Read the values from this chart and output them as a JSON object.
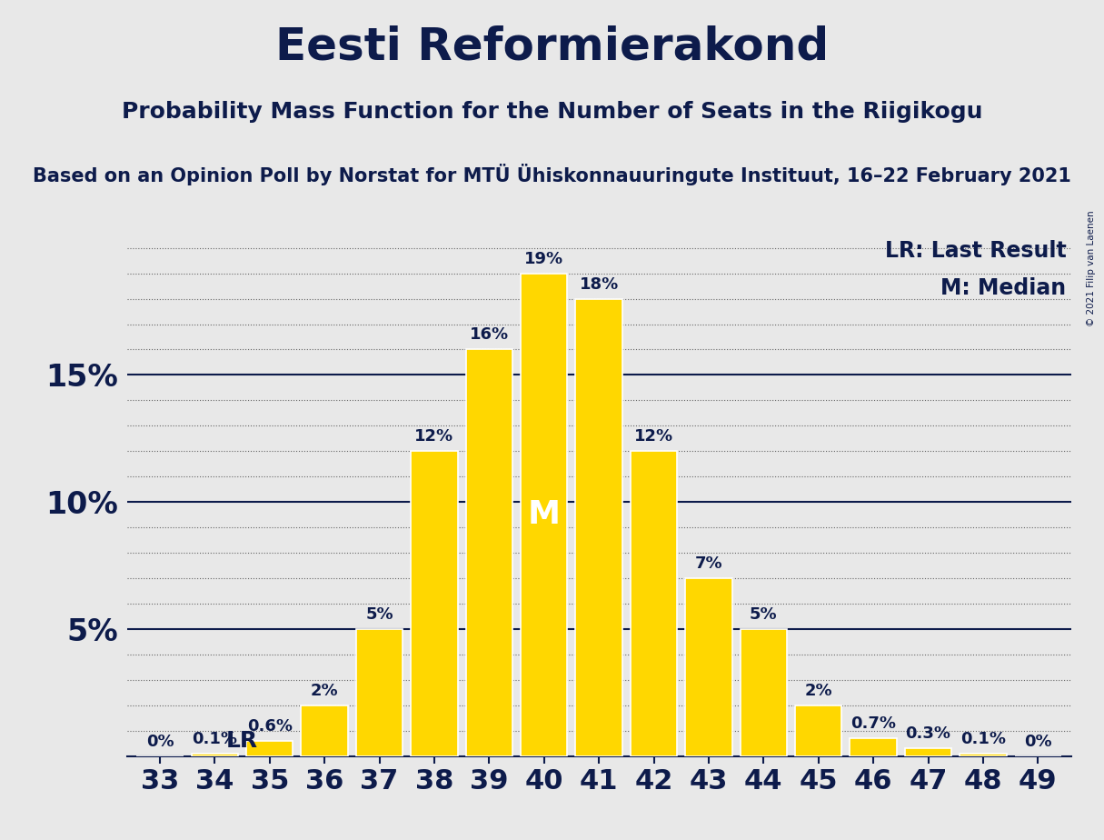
{
  "title": "Eesti Reformierakond",
  "subtitle": "Probability Mass Function for the Number of Seats in the Riigikogu",
  "source_line": "Based on an Opinion Poll by Norstat for MTÜ Ühiskonnauuringute Instituut, 16–22 February 2021",
  "copyright": "© 2021 Filip van Laenen",
  "seats": [
    33,
    34,
    35,
    36,
    37,
    38,
    39,
    40,
    41,
    42,
    43,
    44,
    45,
    46,
    47,
    48,
    49
  ],
  "probabilities": [
    0.0,
    0.1,
    0.6,
    2.0,
    5.0,
    12.0,
    16.0,
    19.0,
    18.0,
    12.0,
    7.0,
    5.0,
    2.0,
    0.7,
    0.3,
    0.1,
    0.0
  ],
  "labels": [
    "0%",
    "0.1%",
    "0.6%",
    "2%",
    "5%",
    "12%",
    "16%",
    "19%",
    "18%",
    "12%",
    "7%",
    "5%",
    "2%",
    "0.7%",
    "0.3%",
    "0.1%",
    "0%"
  ],
  "bar_color": "#FFD700",
  "bar_edge_color": "#FFFFFF",
  "median_seat": 40,
  "lr_seat": 35,
  "lr_label": "LR",
  "median_label": "M",
  "lr_legend": "LR: Last Result",
  "median_legend": "M: Median",
  "background_color": "#E8E8E8",
  "text_color": "#0D1B4B",
  "title_fontsize": 36,
  "subtitle_fontsize": 18,
  "source_fontsize": 15,
  "ylabel_fontsize": 24,
  "xlabel_fontsize": 22,
  "bar_label_fontsize": 13,
  "legend_fontsize": 17,
  "ylim_max": 20.5,
  "solid_grid_vals": [
    5,
    10,
    15
  ],
  "dotted_grid_vals": [
    1,
    2,
    3,
    4,
    6,
    7,
    8,
    9,
    11,
    12,
    13,
    14,
    16,
    17,
    18,
    19,
    20
  ],
  "ytick_vals": [
    5,
    10,
    15
  ],
  "ytick_labels": [
    "5%",
    "10%",
    "15%"
  ]
}
